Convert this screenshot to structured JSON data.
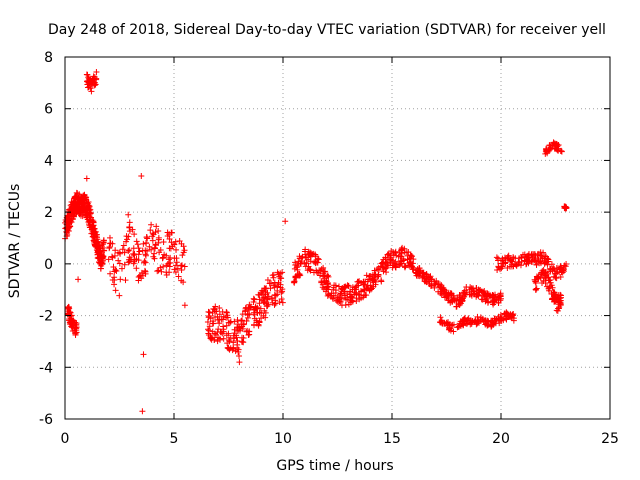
{
  "chart_data": {
    "type": "scatter",
    "title": "Day 248 of 2018, Sidereal Day-to-day VTEC variation (SDTVAR) for receiver yell",
    "xlabel": "GPS time / hours",
    "ylabel": "SDTVAR / TECUs",
    "xlim": [
      0,
      25
    ],
    "ylim": [
      -6,
      8
    ],
    "xticks": [
      0,
      5,
      10,
      15,
      20,
      25
    ],
    "yticks": [
      -6,
      -4,
      -2,
      0,
      2,
      4,
      6,
      8
    ],
    "grid": true,
    "marker": "+",
    "color": "#ff0000",
    "series": [
      {
        "name": "SDTVAR",
        "segments": [
          {
            "x": [
              0.0,
              0.15,
              0.3,
              0.45,
              0.6,
              0.75,
              0.9,
              1.05,
              1.2,
              1.35,
              1.5,
              1.65,
              1.8
            ],
            "y": [
              1.3,
              1.6,
              2.0,
              2.3,
              2.4,
              2.2,
              2.3,
              2.1,
              1.6,
              1.1,
              0.6,
              0.2,
              0.6
            ],
            "spread": 0.4,
            "density": 10
          },
          {
            "x": [
              0.1,
              0.25,
              0.4,
              0.55
            ],
            "y": [
              -1.8,
              -2.1,
              -2.4,
              -2.5
            ],
            "spread": 0.3,
            "density": 6
          },
          {
            "x": [
              1.0,
              1.2,
              1.45
            ],
            "y": [
              7.1,
              6.9,
              7.2
            ],
            "spread": 0.25,
            "density": 7
          },
          {
            "x": [
              2.0,
              2.5,
              3.0,
              3.5,
              4.0,
              4.5,
              5.0,
              5.5
            ],
            "y": [
              0.2,
              -0.4,
              0.8,
              -0.2,
              0.8,
              0.3,
              0.5,
              0.1
            ],
            "spread": 0.9,
            "density": 8
          },
          {
            "x": [
              6.5,
              7.0,
              7.5,
              8.0,
              8.5,
              9.0,
              9.5,
              10.0
            ],
            "y": [
              -2.5,
              -2.3,
              -2.6,
              -2.9,
              -2.0,
              -1.6,
              -1.0,
              -0.9
            ],
            "spread": 0.7,
            "density": 11
          },
          {
            "x": [
              10.5,
              11.0,
              11.5,
              12.0,
              12.5,
              13.0,
              13.5,
              14.0,
              14.5,
              15.0,
              15.5,
              16.0
            ],
            "y": [
              -0.4,
              0.2,
              0.0,
              -0.8,
              -1.2,
              -1.2,
              -1.0,
              -0.7,
              -0.3,
              0.2,
              0.3,
              0.1
            ],
            "spread": 0.4,
            "density": 10
          },
          {
            "x": [
              16.0,
              16.5,
              17.0,
              17.5,
              18.0,
              18.5,
              19.0,
              19.5,
              20.0
            ],
            "y": [
              -0.2,
              -0.5,
              -0.8,
              -1.2,
              -1.5,
              -1.0,
              -1.1,
              -1.4,
              -1.3
            ],
            "spread": 0.2,
            "density": 9
          },
          {
            "x": [
              17.2,
              17.8,
              18.4,
              19.0,
              19.6,
              20.2,
              20.6
            ],
            "y": [
              -2.2,
              -2.5,
              -2.2,
              -2.2,
              -2.3,
              -2.0,
              -2.1
            ],
            "spread": 0.15,
            "density": 8
          },
          {
            "x": [
              19.8,
              20.4,
              21.0,
              21.5,
              22.0,
              22.5,
              23.0
            ],
            "y": [
              0.0,
              0.1,
              0.1,
              0.2,
              0.2,
              -0.4,
              -0.2
            ],
            "spread": 0.25,
            "density": 8
          },
          {
            "x": [
              21.5,
              22.0,
              22.3,
              22.6,
              22.8
            ],
            "y": [
              -0.8,
              -0.4,
              -1.0,
              -1.6,
              -1.2
            ],
            "spread": 0.3,
            "density": 8
          },
          {
            "x": [
              22.0,
              22.4,
              22.8
            ],
            "y": [
              4.3,
              4.6,
              4.4
            ],
            "spread": 0.12,
            "density": 7
          },
          {
            "x": [
              22.9,
              23.0
            ],
            "y": [
              2.2,
              2.15
            ],
            "spread": 0.05,
            "density": 4
          }
        ],
        "outliers": {
          "x": [
            3.55,
            3.6,
            3.5,
            0.6,
            5.5,
            10.1,
            8.0,
            2.9,
            1.0
          ],
          "y": [
            -5.7,
            -3.5,
            3.4,
            -0.6,
            -1.6,
            1.65,
            -3.8,
            1.9,
            3.3
          ]
        }
      }
    ]
  }
}
